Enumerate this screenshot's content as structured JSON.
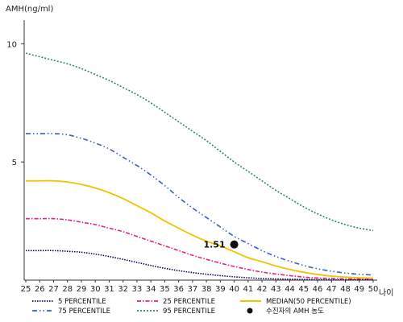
{
  "chart_data": {
    "type": "line",
    "ylabel": "AMH(ng/ml)",
    "xlabel": "나이",
    "ylim": [
      0,
      11
    ],
    "xlim": [
      25,
      50
    ],
    "x": [
      25,
      26,
      27,
      28,
      29,
      30,
      31,
      32,
      33,
      34,
      35,
      36,
      37,
      38,
      39,
      40,
      41,
      42,
      43,
      44,
      45,
      46,
      47,
      48,
      49,
      50
    ],
    "y_ticks": [
      "5",
      "10"
    ],
    "x_tick_labels": [
      "25",
      "26",
      "27",
      "28",
      "29",
      "30",
      "31",
      "32",
      "33",
      "34",
      "35",
      "36",
      "37",
      "38",
      "39",
      "40",
      "41",
      "42",
      "43",
      "44",
      "45",
      "46",
      "47",
      "48",
      "49",
      "50"
    ],
    "series": [
      {
        "name": "95 PERCENTILE",
        "color": "#2e8b57",
        "dash": "2,2",
        "values": [
          9.6,
          9.45,
          9.3,
          9.15,
          8.95,
          8.7,
          8.45,
          8.15,
          7.85,
          7.5,
          7.1,
          6.7,
          6.3,
          5.9,
          5.45,
          5.0,
          4.6,
          4.2,
          3.8,
          3.45,
          3.1,
          2.8,
          2.55,
          2.35,
          2.2,
          2.1
        ]
      },
      {
        "name": "75 PERCENTILE",
        "color": "#3a5fcd",
        "dash": "6,3,1.5,3,1.5,3",
        "values": [
          6.2,
          6.2,
          6.2,
          6.15,
          6.0,
          5.8,
          5.55,
          5.2,
          4.85,
          4.45,
          4.0,
          3.5,
          3.05,
          2.65,
          2.25,
          1.85,
          1.55,
          1.25,
          1.0,
          0.8,
          0.62,
          0.48,
          0.38,
          0.3,
          0.25,
          0.22
        ]
      },
      {
        "name": "MEDIAN(50 PERCENTILE)",
        "color": "#f2c200",
        "dash": "",
        "values": [
          4.2,
          4.2,
          4.2,
          4.15,
          4.05,
          3.9,
          3.7,
          3.45,
          3.15,
          2.85,
          2.5,
          2.2,
          1.9,
          1.65,
          1.45,
          1.2,
          0.95,
          0.78,
          0.6,
          0.45,
          0.33,
          0.24,
          0.17,
          0.13,
          0.1,
          0.08
        ]
      },
      {
        "name": "25 PERCENTILE",
        "color": "#e0218a",
        "dash": "5,2,1.5,2",
        "values": [
          2.6,
          2.6,
          2.6,
          2.55,
          2.45,
          2.35,
          2.2,
          2.05,
          1.85,
          1.65,
          1.45,
          1.25,
          1.05,
          0.88,
          0.72,
          0.58,
          0.45,
          0.34,
          0.26,
          0.19,
          0.13,
          0.09,
          0.07,
          0.05,
          0.04,
          0.03
        ]
      },
      {
        "name": "5 PERCENTILE",
        "color": "#0a0a55",
        "dash": "1.5,1.5",
        "values": [
          1.25,
          1.25,
          1.25,
          1.22,
          1.18,
          1.1,
          1.0,
          0.88,
          0.75,
          0.62,
          0.5,
          0.4,
          0.32,
          0.25,
          0.19,
          0.14,
          0.1,
          0.07,
          0.05,
          0.04,
          0.03,
          0.02,
          0.015,
          0.01,
          0.01,
          0.01
        ]
      }
    ],
    "highlight_point": {
      "name": "수진자의 AMH 농도",
      "x": 40,
      "y": 1.51,
      "label": "1.51",
      "color": "#111111"
    },
    "legend": {
      "placement": "bottom",
      "rows": [
        [
          {
            "label": "5 PERCENTILE",
            "color": "#0a0a55",
            "dash": "1.5,1.5"
          },
          {
            "label": "25 PERCENTILE",
            "color": "#e0218a",
            "dash": "5,2,1.5,2"
          },
          {
            "label": "MEDIAN(50 PERCENTILE)",
            "color": "#f2c200",
            "dash": ""
          }
        ],
        [
          {
            "label": "75 PERCENTILE",
            "color": "#3a5fcd",
            "dash": "6,3,1.5,3,1.5,3"
          },
          {
            "label": "95 PERCENTILE",
            "color": "#2e8b57",
            "dash": "2,2"
          },
          {
            "label": "수진자의 AMH 농도",
            "color": "#111111",
            "marker": "dot"
          }
        ]
      ]
    },
    "grid": false
  }
}
